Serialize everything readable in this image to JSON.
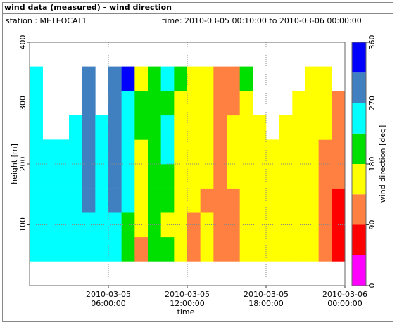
{
  "header": {
    "title": "wind data (measured) - wind direction",
    "station": "station : METEOCAT1",
    "time": "time: 2010-03-05 00:10:00 to 2010-03-06 00:00:00"
  },
  "chart_data": {
    "type": "heatmap",
    "xlabel": "time",
    "ylabel": "height [m]",
    "colorbar_label": "wind direction [deg]",
    "xlim": [
      "2010-03-05 00:00:00",
      "2010-03-06 00:00:00"
    ],
    "xticks": [
      "2010-03-05 06:00:00",
      "2010-03-05 12:00:00",
      "2010-03-05 18:00:00",
      "2010-03-06 00:00:00"
    ],
    "ylim": [
      0,
      400
    ],
    "yticks": [
      100,
      200,
      300,
      400
    ],
    "grid": true,
    "clim": [
      0,
      360
    ],
    "cticks": [
      0,
      90,
      180,
      270,
      360
    ],
    "colors": [
      "#ff00ff",
      "#ff0000",
      "#ff8040",
      "#ffff00",
      "#00e000",
      "#00ffff",
      "#4080c0",
      "#0000ff"
    ],
    "x_edges": [
      "2010-03-05 00:00:00",
      "2010-03-05 01:00:00",
      "2010-03-05 02:00:00",
      "2010-03-05 03:00:00",
      "2010-03-05 04:00:00",
      "2010-03-05 05:00:00",
      "2010-03-05 06:00:00",
      "2010-03-05 07:00:00",
      "2010-03-05 08:00:00",
      "2010-03-05 09:00:00",
      "2010-03-05 10:00:00",
      "2010-03-05 11:00:00",
      "2010-03-05 12:00:00",
      "2010-03-05 13:00:00",
      "2010-03-05 14:00:00",
      "2010-03-05 15:00:00",
      "2010-03-05 16:00:00",
      "2010-03-05 17:00:00",
      "2010-03-05 18:00:00",
      "2010-03-05 19:00:00",
      "2010-03-05 20:00:00",
      "2010-03-05 21:00:00",
      "2010-03-05 22:00:00",
      "2010-03-05 23:00:00",
      "2010-03-06 00:00:00"
    ],
    "y_edges": [
      40,
      80,
      120,
      160,
      200,
      240,
      280,
      320,
      360
    ],
    "z": [
      [
        250,
        250,
        250,
        250,
        250,
        250,
        250,
        250
      ],
      [
        250,
        250,
        250,
        250,
        250,
        null,
        null,
        null
      ],
      [
        250,
        250,
        250,
        250,
        250,
        null,
        null,
        null
      ],
      [
        250,
        250,
        250,
        250,
        250,
        250,
        null,
        null
      ],
      [
        250,
        250,
        290,
        290,
        290,
        290,
        290,
        290
      ],
      [
        250,
        250,
        250,
        250,
        250,
        250,
        null,
        null
      ],
      [
        250,
        250,
        290,
        290,
        290,
        290,
        290,
        290
      ],
      [
        200,
        200,
        250,
        250,
        250,
        250,
        250,
        330
      ],
      [
        110,
        160,
        160,
        160,
        160,
        200,
        200,
        160
      ],
      [
        200,
        200,
        200,
        200,
        200,
        200,
        200,
        200
      ],
      [
        200,
        160,
        200,
        200,
        250,
        250,
        200,
        250
      ],
      [
        160,
        160,
        160,
        160,
        160,
        160,
        160,
        200
      ],
      [
        110,
        110,
        160,
        160,
        160,
        160,
        160,
        160
      ],
      [
        160,
        160,
        110,
        160,
        160,
        160,
        160,
        160
      ],
      [
        110,
        110,
        110,
        110,
        110,
        110,
        110,
        110
      ],
      [
        110,
        110,
        110,
        160,
        160,
        160,
        110,
        110
      ],
      [
        160,
        160,
        160,
        160,
        160,
        160,
        160,
        200
      ],
      [
        160,
        160,
        160,
        160,
        160,
        160,
        null,
        null
      ],
      [
        160,
        160,
        160,
        160,
        160,
        null,
        null,
        null
      ],
      [
        160,
        160,
        160,
        160,
        160,
        160,
        null,
        null
      ],
      [
        160,
        160,
        160,
        160,
        160,
        160,
        160,
        null
      ],
      [
        160,
        160,
        160,
        160,
        160,
        160,
        160,
        160
      ],
      [
        110,
        110,
        110,
        110,
        110,
        160,
        160,
        160
      ],
      [
        60,
        60,
        60,
        110,
        110,
        110,
        110,
        null
      ]
    ]
  }
}
